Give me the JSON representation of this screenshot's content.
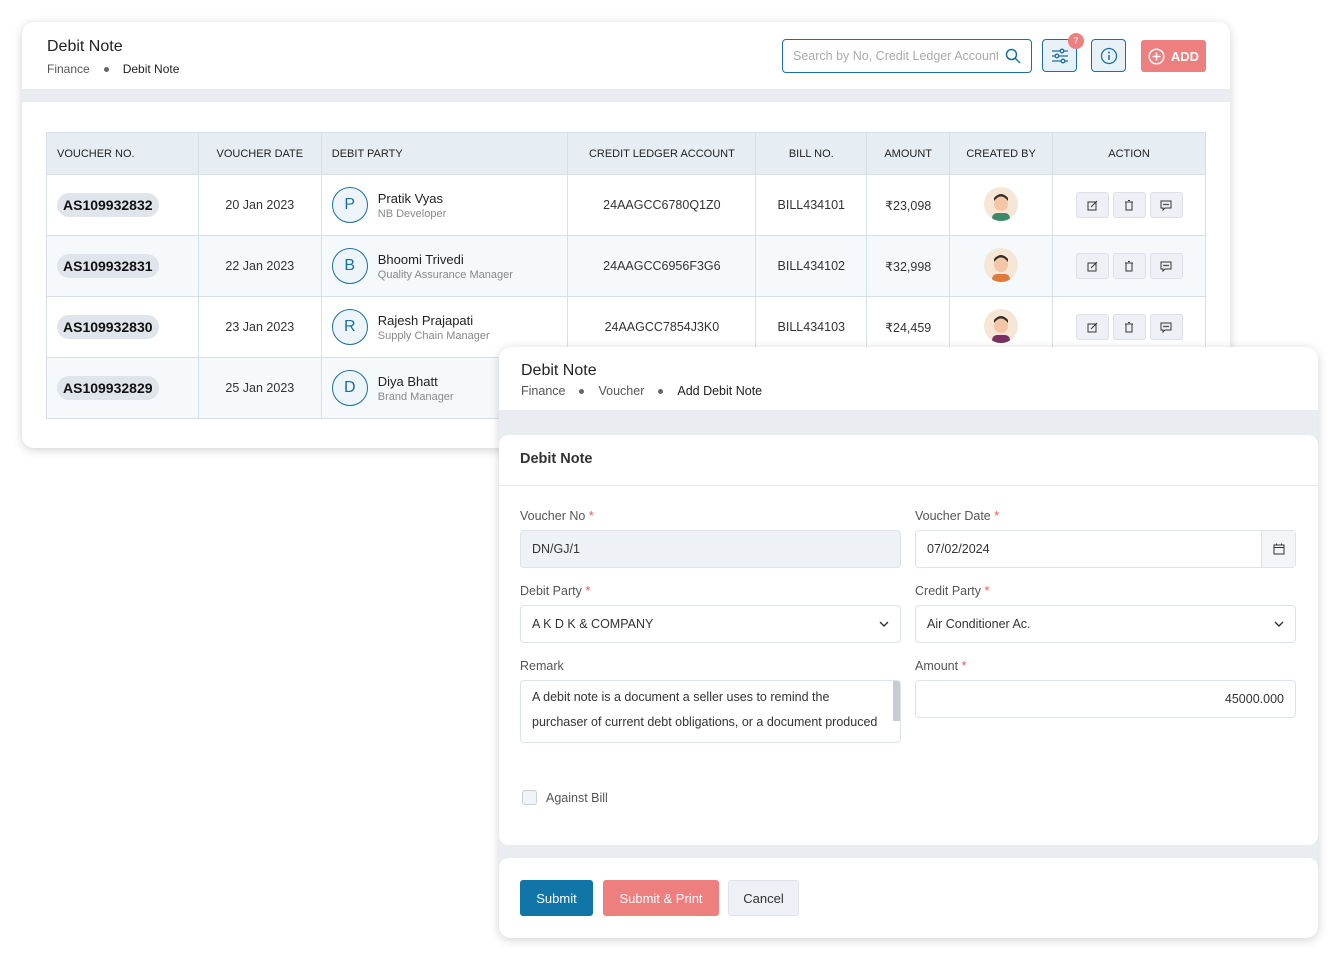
{
  "list": {
    "title": "Debit Note",
    "breadcrumb": [
      "Finance",
      "Debit Note"
    ],
    "search_placeholder": "Search by No, Credit Ledger Account",
    "filter_count": "7",
    "add_label": "ADD",
    "colors": {
      "accent": "#1a6fa0",
      "add": "#ee7f7f"
    },
    "columns": [
      "VOUCHER NO.",
      "VOUCHER DATE",
      "DEBIT PARTY",
      "CREDIT LEDGER ACCOUNT",
      "BILL NO.",
      "AMOUNT",
      "CREATED BY",
      "ACTION"
    ],
    "rows": [
      {
        "voucher": "AS109932832",
        "date": "20 Jan 2023",
        "initial": "P",
        "name": "Pratik Vyas",
        "role": "NB Developer",
        "ledger": "24AAGCC6780Q1Z0",
        "bill": "BILL434101",
        "amount": "₹23,098"
      },
      {
        "voucher": "AS109932831",
        "date": "22 Jan 2023",
        "initial": "B",
        "name": "Bhoomi Trivedi",
        "role": "Quality Assurance Manager",
        "ledger": "24AAGCC6956F3G6",
        "bill": "BILL434102",
        "amount": "₹32,998"
      },
      {
        "voucher": "AS109932830",
        "date": "23 Jan 2023",
        "initial": "R",
        "name": "Rajesh Prajapati",
        "role": "Supply Chain Manager",
        "ledger": "24AAGCC7854J3K0",
        "bill": "BILL434103",
        "amount": "₹24,459"
      },
      {
        "voucher": "AS109932829",
        "date": "25 Jan 2023",
        "initial": "D",
        "name": "Diya Bhatt",
        "role": "Brand Manager",
        "ledger": "",
        "bill": "",
        "amount": ""
      }
    ]
  },
  "form": {
    "title": "Debit Note",
    "breadcrumb": [
      "Finance",
      "Voucher",
      "Add Debit Note"
    ],
    "section_title": "Debit Note",
    "voucher_no_label": "Voucher No",
    "voucher_no": "DN/GJ/1",
    "voucher_date_label": "Voucher Date",
    "voucher_date": "07/02/2024",
    "debit_party_label": "Debit Party",
    "debit_party": "A K D K & COMPANY",
    "credit_party_label": "Credit Party",
    "credit_party": "Air Conditioner Ac.",
    "remark_label": "Remark",
    "remark": "A debit note is a document a seller uses to remind the purchaser of current debt obligations, or a document produced",
    "amount_label": "Amount",
    "amount": "45000.000",
    "against_bill_label": "Against Bill",
    "against_bill_checked": false,
    "required_mark": "*",
    "submit": "Submit",
    "submit_print": "Submit & Print",
    "cancel": "Cancel"
  }
}
